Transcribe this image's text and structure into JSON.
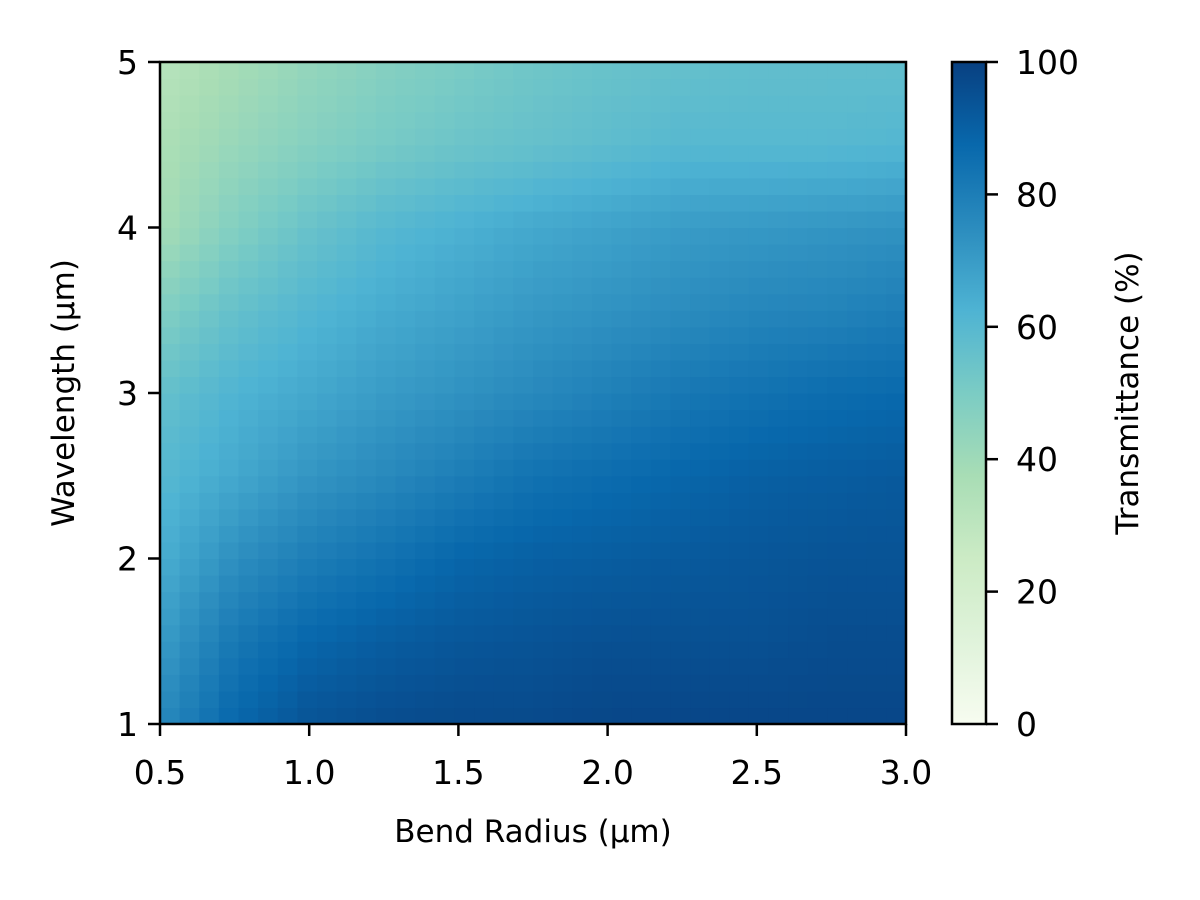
{
  "chart_data": {
    "type": "heatmap",
    "title": "",
    "xlabel": "Bend Radius (μm)",
    "ylabel": "Wavelength (μm)",
    "xlim": [
      0.5,
      3.0
    ],
    "ylim": [
      1,
      5
    ],
    "xticks": [
      "0.5",
      "1.0",
      "1.5",
      "2.0",
      "2.5",
      "3.0"
    ],
    "yticks": [
      "1",
      "2",
      "3",
      "4",
      "5"
    ],
    "colormap": "GnBu",
    "colorbar": {
      "label": "Transmittance (%)",
      "range": [
        0,
        100
      ],
      "ticks": [
        "0",
        "20",
        "40",
        "60",
        "80",
        "100"
      ]
    },
    "x": [
      0.5,
      0.75,
      1.0,
      1.25,
      1.5,
      1.75,
      2.0,
      2.25,
      2.5,
      2.75,
      3.0
    ],
    "y": [
      1.0,
      1.5,
      2.0,
      2.5,
      3.0,
      3.5,
      4.0,
      4.5,
      5.0
    ],
    "z": [
      [
        76,
        88,
        94,
        96,
        97,
        97,
        98,
        98,
        98,
        98,
        98
      ],
      [
        70,
        82,
        88,
        91,
        93,
        94,
        95,
        95,
        95,
        96,
        96
      ],
      [
        64,
        74,
        80,
        84,
        88,
        90,
        91,
        92,
        93,
        94,
        94
      ],
      [
        60,
        66,
        72,
        76,
        80,
        84,
        86,
        88,
        90,
        91,
        92
      ],
      [
        56,
        62,
        66,
        70,
        73,
        76,
        79,
        82,
        84,
        86,
        87
      ],
      [
        48,
        56,
        61,
        65,
        68,
        71,
        73,
        75,
        77,
        78,
        80
      ],
      [
        38,
        48,
        55,
        60,
        63,
        66,
        68,
        70,
        71,
        72,
        73
      ],
      [
        36,
        42,
        47,
        51,
        54,
        56,
        58,
        60,
        60,
        60,
        61
      ],
      [
        32,
        38,
        43,
        47,
        50,
        53,
        55,
        56,
        57,
        57,
        57
      ]
    ]
  }
}
